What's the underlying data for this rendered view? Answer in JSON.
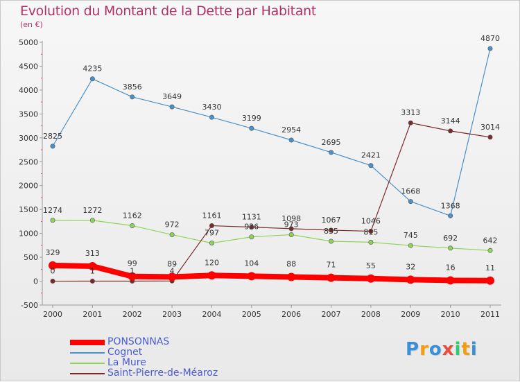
{
  "chart_data": {
    "type": "line",
    "title": "Evolution du Montant de la Dette par Habitant",
    "unit_label": "(en €)",
    "x": [
      "2000",
      "2001",
      "2002",
      "2003",
      "2004",
      "2005",
      "2006",
      "2007",
      "2008",
      "2009",
      "2010",
      "2011"
    ],
    "ylim": [
      -500,
      5000
    ],
    "yticks": [
      "-500",
      "0",
      "500",
      "1000",
      "1500",
      "2000",
      "2500",
      "3000",
      "3500",
      "4000",
      "4500",
      "5000"
    ],
    "grid": false,
    "legend_position": "bottom-left",
    "series": [
      {
        "name": "PONSONNAS",
        "color": "#ff0000",
        "values": [
          329,
          313,
          99,
          89,
          120,
          104,
          88,
          71,
          55,
          32,
          16,
          11
        ],
        "labels": [
          "329",
          "313",
          "99",
          "89",
          "120",
          "104",
          "88",
          "71",
          "55",
          "32",
          "16",
          "11"
        ]
      },
      {
        "name": "Cognet",
        "color": "#4a90c9",
        "values": [
          2825,
          4235,
          3856,
          3649,
          3430,
          3199,
          2954,
          2695,
          2421,
          1668,
          1368,
          4870
        ],
        "labels": [
          "2825",
          "4235",
          "3856",
          "3649",
          "3430",
          "3199",
          "2954",
          "2695",
          "2421",
          "1668",
          "1368",
          "4870"
        ]
      },
      {
        "name": "La Mure",
        "color": "#8ed45a",
        "values": [
          1274,
          1272,
          1162,
          972,
          797,
          926,
          973,
          835,
          815,
          745,
          692,
          642
        ],
        "labels": [
          "1274",
          "1272",
          "1162",
          "972",
          "797",
          "926",
          "973",
          "835",
          "815",
          "745",
          "692",
          "642"
        ]
      },
      {
        "name": "Saint-Pierre-de-Méaroz",
        "color": "#7a2a2a",
        "values": [
          0,
          1,
          1,
          4,
          1161,
          1131,
          1098,
          1067,
          1046,
          3313,
          3144,
          3014
        ],
        "labels": [
          "0",
          "1",
          "1",
          "4",
          "1161",
          "1131",
          "1098",
          "1067",
          "1046",
          "3313",
          "3144",
          "3014"
        ]
      }
    ]
  },
  "logo": {
    "letters": [
      "P",
      "r",
      "o",
      "x",
      "i",
      "t",
      "i"
    ],
    "colors": [
      "#3a8fd6",
      "#f39c12",
      "#3a8fd6",
      "#e74c3c",
      "#2ecc71",
      "#f39c12",
      "#3a8fd6"
    ]
  }
}
